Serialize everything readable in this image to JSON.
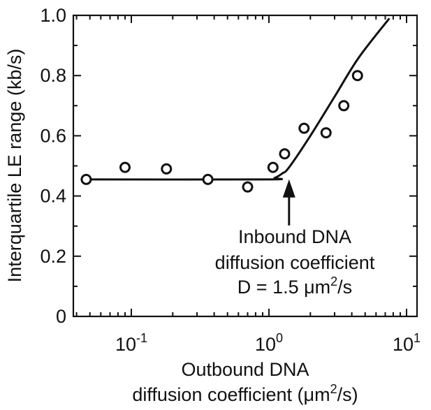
{
  "chart_data": {
    "type": "scatter",
    "xscale": "log",
    "xlim": [
      0.045,
      10
    ],
    "ylim": [
      0,
      1.0
    ],
    "xlabel": {
      "line1": "Outbound DNA",
      "line2": "diffusion coefficient (μm",
      "sup": "2",
      "tail": "/s)"
    },
    "ylabel": "Interquartile LE range (kb/s)",
    "yticks": [
      {
        "value": 0,
        "label": "0"
      },
      {
        "value": 0.2,
        "label": "0.2"
      },
      {
        "value": 0.4,
        "label": "0.4"
      },
      {
        "value": 0.6,
        "label": "0.6"
      },
      {
        "value": 0.8,
        "label": "0.8"
      },
      {
        "value": 1.0,
        "label": "1.0"
      }
    ],
    "xticks": [
      {
        "value": 0.1,
        "base": "10",
        "exp": "-1"
      },
      {
        "value": 1,
        "base": "10",
        "exp": "0"
      },
      {
        "value": 10,
        "base": "10",
        "exp": "1"
      }
    ],
    "points": [
      {
        "x": 0.047,
        "y": 0.455
      },
      {
        "x": 0.09,
        "y": 0.495
      },
      {
        "x": 0.18,
        "y": 0.49
      },
      {
        "x": 0.36,
        "y": 0.455
      },
      {
        "x": 0.7,
        "y": 0.43
      },
      {
        "x": 1.07,
        "y": 0.495
      },
      {
        "x": 1.3,
        "y": 0.54
      },
      {
        "x": 1.8,
        "y": 0.625
      },
      {
        "x": 2.6,
        "y": 0.61
      },
      {
        "x": 3.5,
        "y": 0.7
      },
      {
        "x": 4.4,
        "y": 0.8
      }
    ],
    "fit_line": [
      {
        "x": 0.045,
        "y": 0.455
      },
      {
        "x": 0.95,
        "y": 0.455
      },
      {
        "x": 1.1,
        "y": 0.46
      },
      {
        "x": 1.25,
        "y": 0.475
      },
      {
        "x": 1.4,
        "y": 0.495
      },
      {
        "x": 2.0,
        "y": 0.6
      },
      {
        "x": 3.0,
        "y": 0.73
      },
      {
        "x": 4.5,
        "y": 0.86
      },
      {
        "x": 7.5,
        "y": 0.99
      }
    ],
    "annotation": {
      "arrow_x": 1.4,
      "arrow_y": 0.46,
      "line1": "Inbound DNA",
      "line2": "diffusion coefficient",
      "line3": "D = 1.5 μm",
      "line3_sup": "2",
      "line3_tail": "/s"
    }
  }
}
